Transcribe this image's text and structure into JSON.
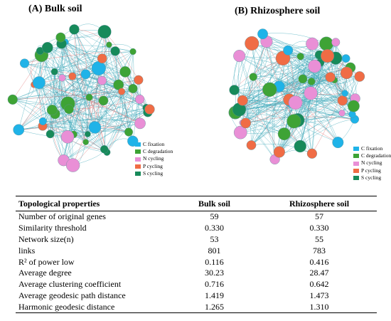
{
  "panels": [
    {
      "title": "(A) Bulk soil",
      "legend": [
        {
          "label": "C fixation",
          "color": "#1fb3e8"
        },
        {
          "label": "C degradation",
          "color": "#3ea335"
        },
        {
          "label": "N cycling",
          "color": "#e98fd6"
        },
        {
          "label": "P cycling",
          "color": "#f06c45"
        },
        {
          "label": "S cycling",
          "color": "#178a5a"
        }
      ]
    },
    {
      "title": "(B) Rhizosphere soil",
      "legend": [
        {
          "label": "C fixation",
          "color": "#1fb3e8"
        },
        {
          "label": "C degradation",
          "color": "#3ea335"
        },
        {
          "label": "N cycling",
          "color": "#e98fd6"
        },
        {
          "label": "P cycling",
          "color": "#f06c45"
        },
        {
          "label": "S cycling",
          "color": "#178a5a"
        }
      ]
    }
  ],
  "table": {
    "headers": [
      "Topological properties",
      "Bulk soil",
      "Rhizosphere soil"
    ],
    "rows": [
      [
        "Number of original genes",
        "59",
        "57"
      ],
      [
        "Similarity threshold",
        "0.330",
        "0.330"
      ],
      [
        "Network size(n)",
        "53",
        "55"
      ],
      [
        "links",
        "801",
        "783"
      ],
      [
        "R² of power low",
        "0.116",
        "0.416"
      ],
      [
        "Average degree",
        "30.23",
        "28.47"
      ],
      [
        "Average clustering coefficient",
        "0.716",
        "0.642"
      ],
      [
        "Average geodesic path distance",
        "1.419",
        "1.473"
      ],
      [
        "Harmonic geodesic distance",
        "1.265",
        "1.310"
      ]
    ]
  }
}
